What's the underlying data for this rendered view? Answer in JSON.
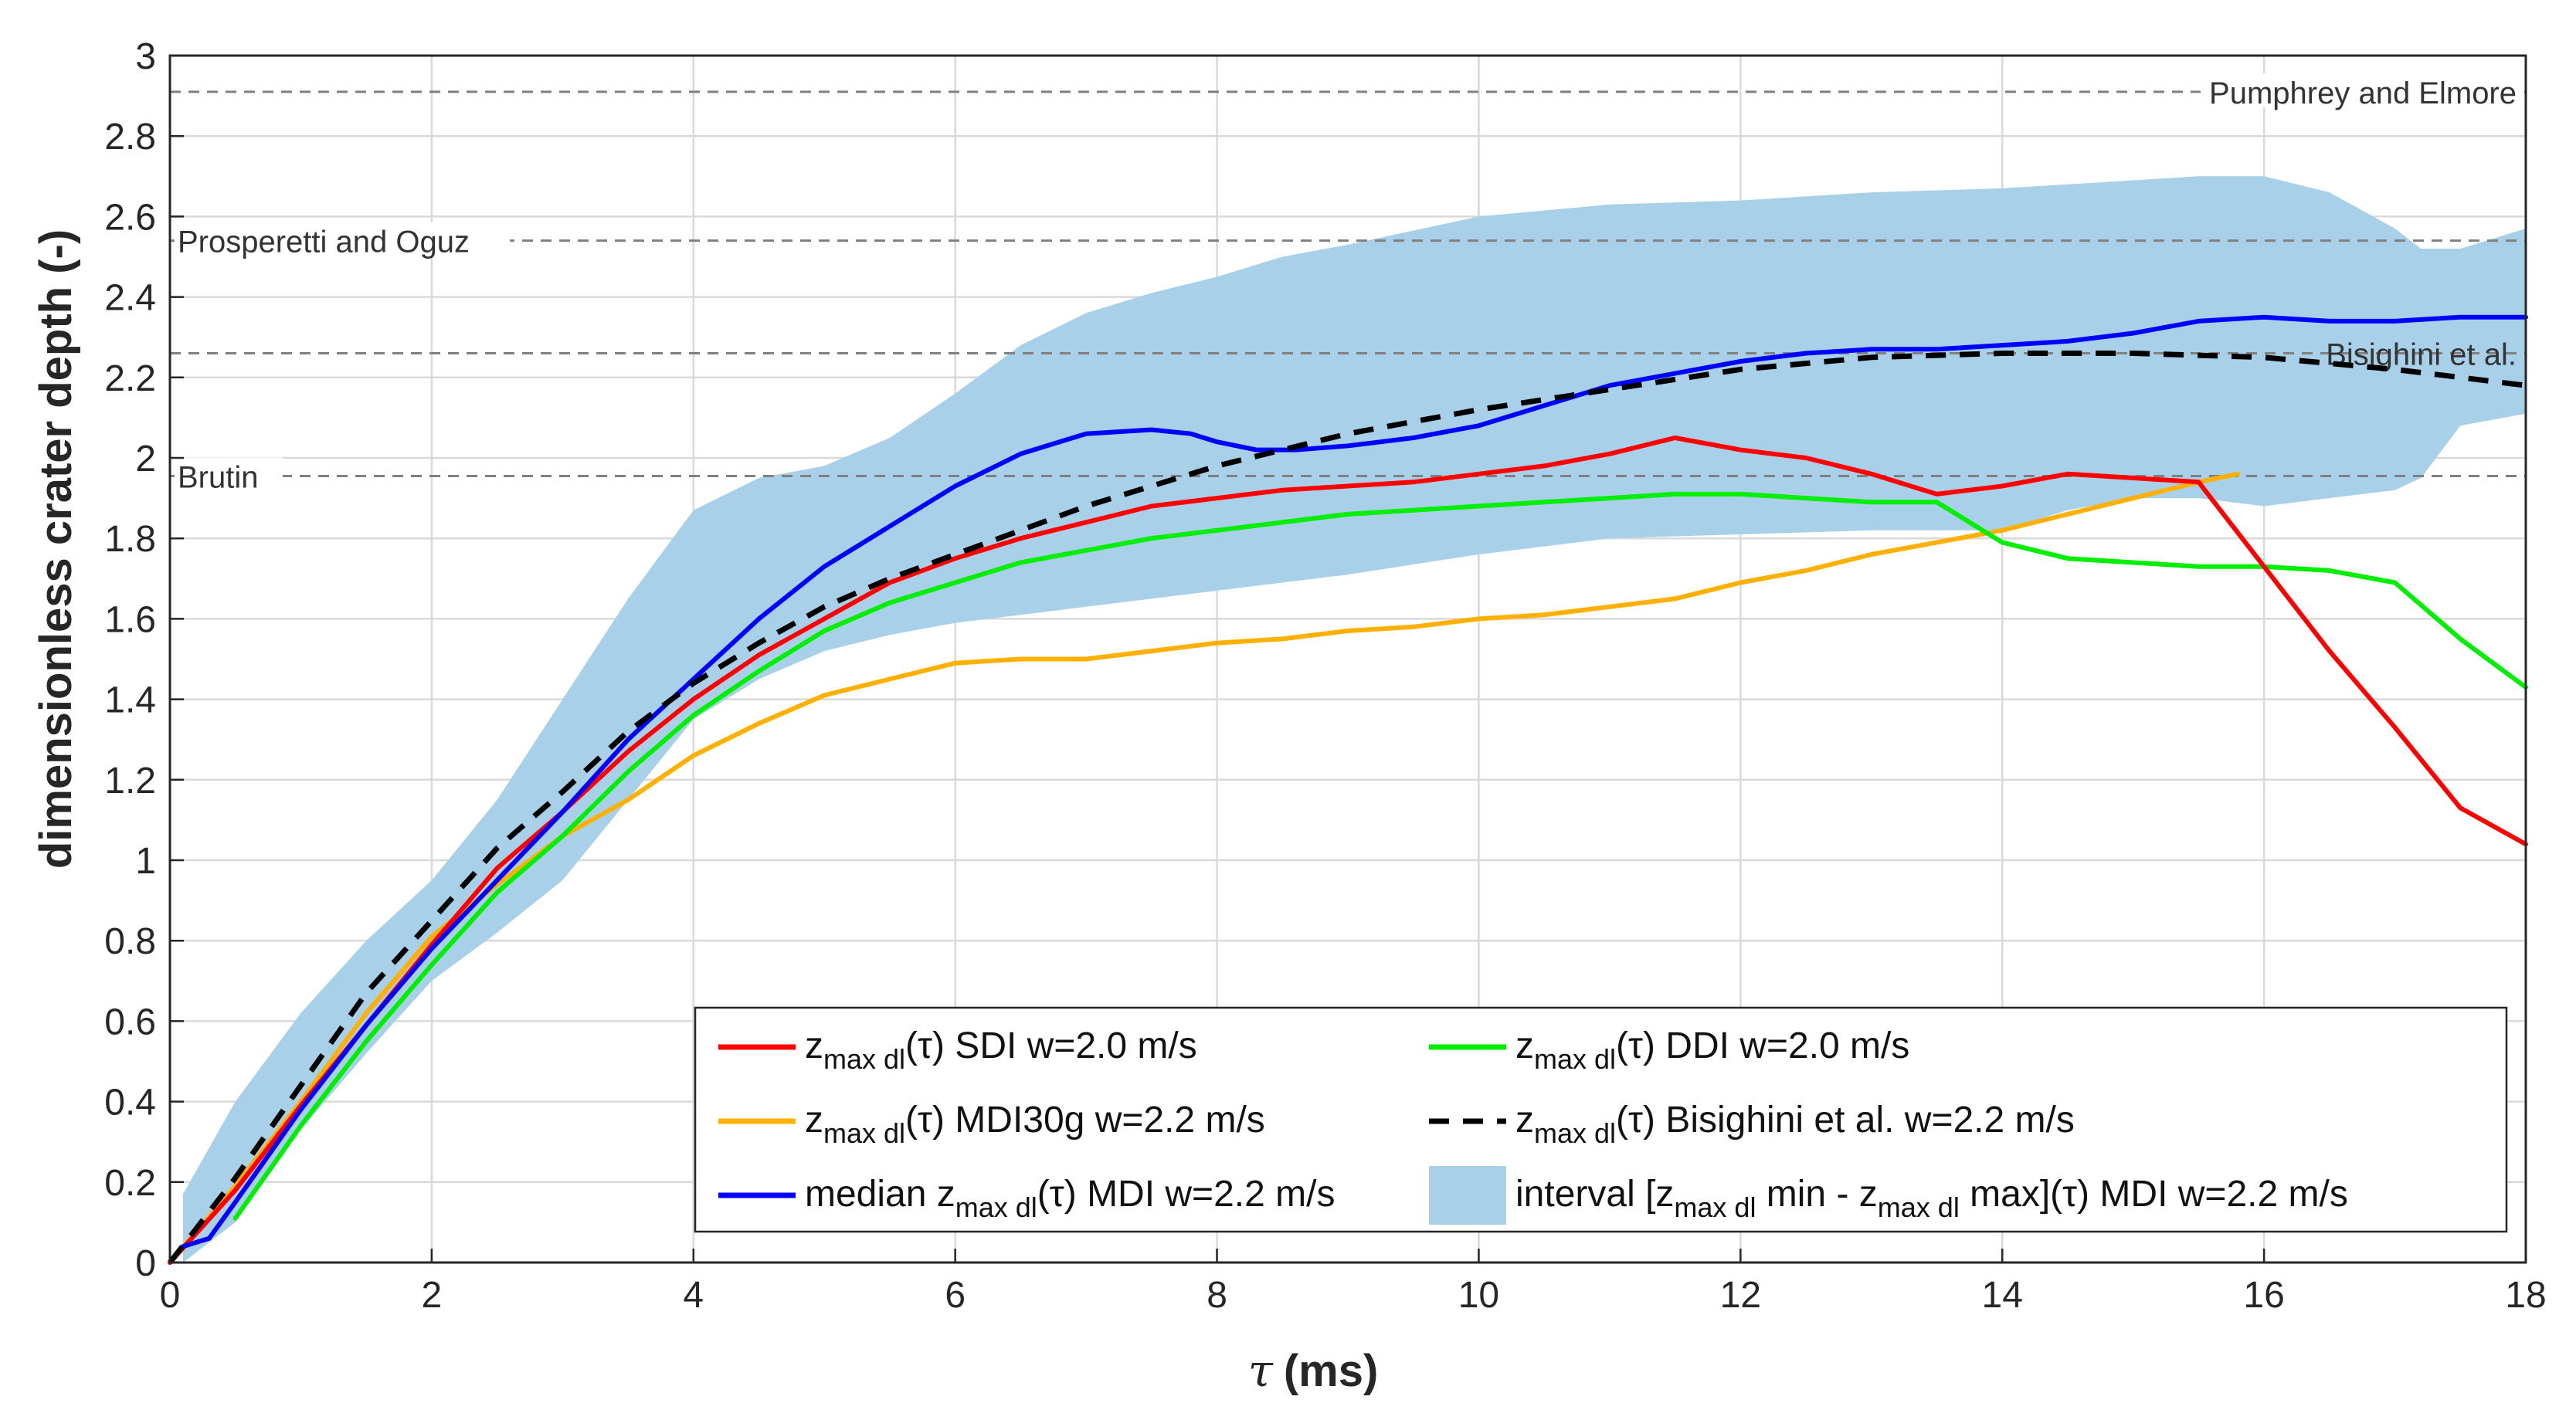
{
  "chart_data": {
    "type": "line",
    "title": "",
    "xlabel": "(ms)",
    "xlabel_symbol": "τ",
    "ylabel": "dimensionless crater depth (-)",
    "xlim": [
      0,
      18
    ],
    "ylim": [
      0,
      3
    ],
    "xticks": [
      "0",
      "2",
      "4",
      "6",
      "8",
      "10",
      "12",
      "14",
      "16",
      "18"
    ],
    "yticks": [
      "0",
      "0.2",
      "0.4",
      "0.6",
      "0.8",
      "1",
      "1.2",
      "1.4",
      "1.6",
      "1.8",
      "2",
      "2.2",
      "2.4",
      "2.6",
      "2.8",
      "3"
    ],
    "grid": true,
    "colors": {
      "sdi": "#ff0000",
      "ddi": "#00ee00",
      "mdi30g": "#ffb000",
      "bisighini": "#000000",
      "median": "#0000ff",
      "band": "#a8d0e8",
      "reference": "#808080"
    },
    "reference_lines": [
      {
        "name": "Pumphrey and Elmore",
        "y": 2.91,
        "label_side": "right"
      },
      {
        "name": "Prosperetti and Oguz",
        "y": 2.54,
        "label_side": "left"
      },
      {
        "name": "Bisighini et al.",
        "y": 2.26,
        "label_side": "right"
      },
      {
        "name": "Brutin",
        "y": 1.955,
        "label_side": "left"
      }
    ],
    "band": {
      "name": "interval MDI w=2.2 m/s",
      "x": [
        0.1,
        0.5,
        1.0,
        1.5,
        2.0,
        2.5,
        3.0,
        3.5,
        4.0,
        4.5,
        5.0,
        5.5,
        6.0,
        6.5,
        7.0,
        7.5,
        8.0,
        8.5,
        9.0,
        10.0,
        11.0,
        12.0,
        13.0,
        14.0,
        14.5,
        15.0,
        15.5,
        16.0,
        16.5,
        17.0,
        17.2,
        17.5,
        18.0
      ],
      "upper": [
        0.17,
        0.4,
        0.62,
        0.8,
        0.95,
        1.15,
        1.4,
        1.65,
        1.87,
        1.95,
        1.98,
        2.05,
        2.16,
        2.28,
        2.36,
        2.41,
        2.45,
        2.5,
        2.53,
        2.6,
        2.63,
        2.64,
        2.66,
        2.67,
        2.68,
        2.69,
        2.7,
        2.7,
        2.66,
        2.57,
        2.52,
        2.52,
        2.57
      ],
      "lower": [
        0.0,
        0.1,
        0.33,
        0.52,
        0.7,
        0.82,
        0.95,
        1.15,
        1.35,
        1.45,
        1.52,
        1.56,
        1.59,
        1.61,
        1.63,
        1.65,
        1.67,
        1.69,
        1.71,
        1.76,
        1.8,
        1.81,
        1.82,
        1.82,
        1.87,
        1.9,
        1.9,
        1.88,
        1.9,
        1.92,
        1.95,
        2.08,
        2.11
      ]
    },
    "series": [
      {
        "name": "SDI w=2.0 m/s",
        "key": "sdi",
        "dash": false,
        "x": [
          0,
          0.5,
          1.0,
          1.5,
          2.0,
          2.5,
          3.0,
          3.5,
          4.0,
          4.5,
          5.0,
          5.5,
          6.0,
          6.5,
          7.0,
          7.5,
          8.0,
          8.5,
          9.0,
          9.5,
          10.0,
          10.5,
          11.0,
          11.5,
          12.0,
          12.5,
          13.0,
          13.5,
          14.0,
          14.5,
          15.0,
          15.5,
          16.0,
          16.5,
          17.0,
          17.5,
          18.0
        ],
        "y": [
          0,
          0.18,
          0.39,
          0.59,
          0.79,
          0.98,
          1.12,
          1.27,
          1.4,
          1.51,
          1.6,
          1.69,
          1.75,
          1.8,
          1.84,
          1.88,
          1.9,
          1.92,
          1.93,
          1.94,
          1.96,
          1.98,
          2.01,
          2.05,
          2.02,
          2.0,
          1.96,
          1.91,
          1.93,
          1.96,
          1.95,
          1.94,
          1.73,
          1.52,
          1.33,
          1.13,
          1.04
        ]
      },
      {
        "name": "DDI w=2.0 m/s",
        "key": "ddi",
        "dash": false,
        "x": [
          0.5,
          1.0,
          1.5,
          2.0,
          2.5,
          3.0,
          3.5,
          4.0,
          4.5,
          5.0,
          5.5,
          6.0,
          6.5,
          7.0,
          7.5,
          8.0,
          8.5,
          9.0,
          9.5,
          10.0,
          10.5,
          11.0,
          11.5,
          12.0,
          12.5,
          13.0,
          13.5,
          14.0,
          14.5,
          15.0,
          15.5,
          16.0,
          16.5,
          17.0,
          17.5,
          18.0
        ],
        "y": [
          0.11,
          0.34,
          0.55,
          0.74,
          0.92,
          1.06,
          1.22,
          1.36,
          1.47,
          1.57,
          1.64,
          1.69,
          1.74,
          1.77,
          1.8,
          1.82,
          1.84,
          1.86,
          1.87,
          1.88,
          1.89,
          1.9,
          1.91,
          1.91,
          1.9,
          1.89,
          1.89,
          1.79,
          1.75,
          1.74,
          1.73,
          1.73,
          1.72,
          1.69,
          1.55,
          1.43
        ]
      },
      {
        "name": "MDI30g w=2.2 m/s",
        "key": "mdi30g",
        "dash": false,
        "x": [
          0,
          0.5,
          1.0,
          1.5,
          2.0,
          2.5,
          3.0,
          3.5,
          4.0,
          4.5,
          5.0,
          5.5,
          6.0,
          6.5,
          7.0,
          7.5,
          8.0,
          8.5,
          9.0,
          9.5,
          10.0,
          10.5,
          11.0,
          11.5,
          12.0,
          12.5,
          13.0,
          13.5,
          14.0,
          14.5,
          15.0,
          15.5,
          15.8
        ],
        "y": [
          0,
          0.19,
          0.4,
          0.62,
          0.81,
          0.94,
          1.06,
          1.15,
          1.26,
          1.34,
          1.41,
          1.45,
          1.49,
          1.5,
          1.5,
          1.52,
          1.54,
          1.55,
          1.57,
          1.58,
          1.6,
          1.61,
          1.63,
          1.65,
          1.69,
          1.72,
          1.76,
          1.79,
          1.82,
          1.86,
          1.9,
          1.94,
          1.96
        ]
      },
      {
        "name": "Bisighini et al. w=2.2 m/s",
        "key": "bisighini",
        "dash": true,
        "x": [
          0,
          0.5,
          1.0,
          1.5,
          2.0,
          2.5,
          3.0,
          3.5,
          4.0,
          4.5,
          5.0,
          5.5,
          6.0,
          6.5,
          7.0,
          7.5,
          8.0,
          8.5,
          9.0,
          9.5,
          10.0,
          11.0,
          12.0,
          13.0,
          14.0,
          15.0,
          16.0,
          17.0,
          18.0
        ],
        "y": [
          0,
          0.21,
          0.44,
          0.67,
          0.85,
          1.03,
          1.17,
          1.32,
          1.44,
          1.54,
          1.63,
          1.7,
          1.76,
          1.82,
          1.88,
          1.93,
          1.98,
          2.02,
          2.06,
          2.09,
          2.12,
          2.17,
          2.22,
          2.25,
          2.26,
          2.26,
          2.25,
          2.22,
          2.18
        ]
      },
      {
        "name": "median MDI w=2.2 m/s",
        "key": "median",
        "dash": false,
        "x": [
          0.1,
          0.3,
          0.5,
          1.0,
          1.5,
          2.0,
          2.5,
          3.0,
          3.5,
          4.0,
          4.5,
          5.0,
          5.5,
          6.0,
          6.5,
          7.0,
          7.5,
          7.8,
          8.0,
          8.3,
          8.6,
          9.0,
          9.5,
          10.0,
          10.5,
          11.0,
          11.5,
          12.0,
          12.5,
          13.0,
          13.5,
          14.0,
          14.5,
          15.0,
          15.5,
          16.0,
          16.5,
          17.0,
          17.5,
          18.0
        ],
        "y": [
          0.04,
          0.06,
          0.15,
          0.38,
          0.59,
          0.78,
          0.95,
          1.12,
          1.3,
          1.45,
          1.6,
          1.73,
          1.83,
          1.93,
          2.01,
          2.06,
          2.07,
          2.06,
          2.04,
          2.02,
          2.02,
          2.03,
          2.05,
          2.08,
          2.13,
          2.18,
          2.21,
          2.24,
          2.26,
          2.27,
          2.27,
          2.28,
          2.29,
          2.31,
          2.34,
          2.35,
          2.34,
          2.34,
          2.35,
          2.35
        ]
      }
    ],
    "legend": {
      "placement": "bottom-right inside",
      "entries": [
        {
          "key": "sdi",
          "pre": "z",
          "sub": "max dl",
          "post": "(τ) SDI w=2.0 m/s"
        },
        {
          "key": "ddi",
          "pre": "z",
          "sub": "max dl",
          "post": "(τ) DDI w=2.0 m/s"
        },
        {
          "key": "mdi30g",
          "pre": "z",
          "sub": "max dl",
          "post": "(τ) MDI30g w=2.2 m/s"
        },
        {
          "key": "bisighini",
          "pre": "z",
          "sub": "max dl",
          "post": "(τ) Bisighini et al. w=2.2 m/s"
        },
        {
          "key": "median",
          "pre": "median z",
          "sub": "max dl",
          "post": "(τ) MDI w=2.2 m/s"
        },
        {
          "key": "band",
          "pre": "interval [z",
          "sub": "max dl",
          "mid": " min - z",
          "sub2": "max dl",
          "post": " max](τ) MDI w=2.2 m/s"
        }
      ]
    }
  }
}
